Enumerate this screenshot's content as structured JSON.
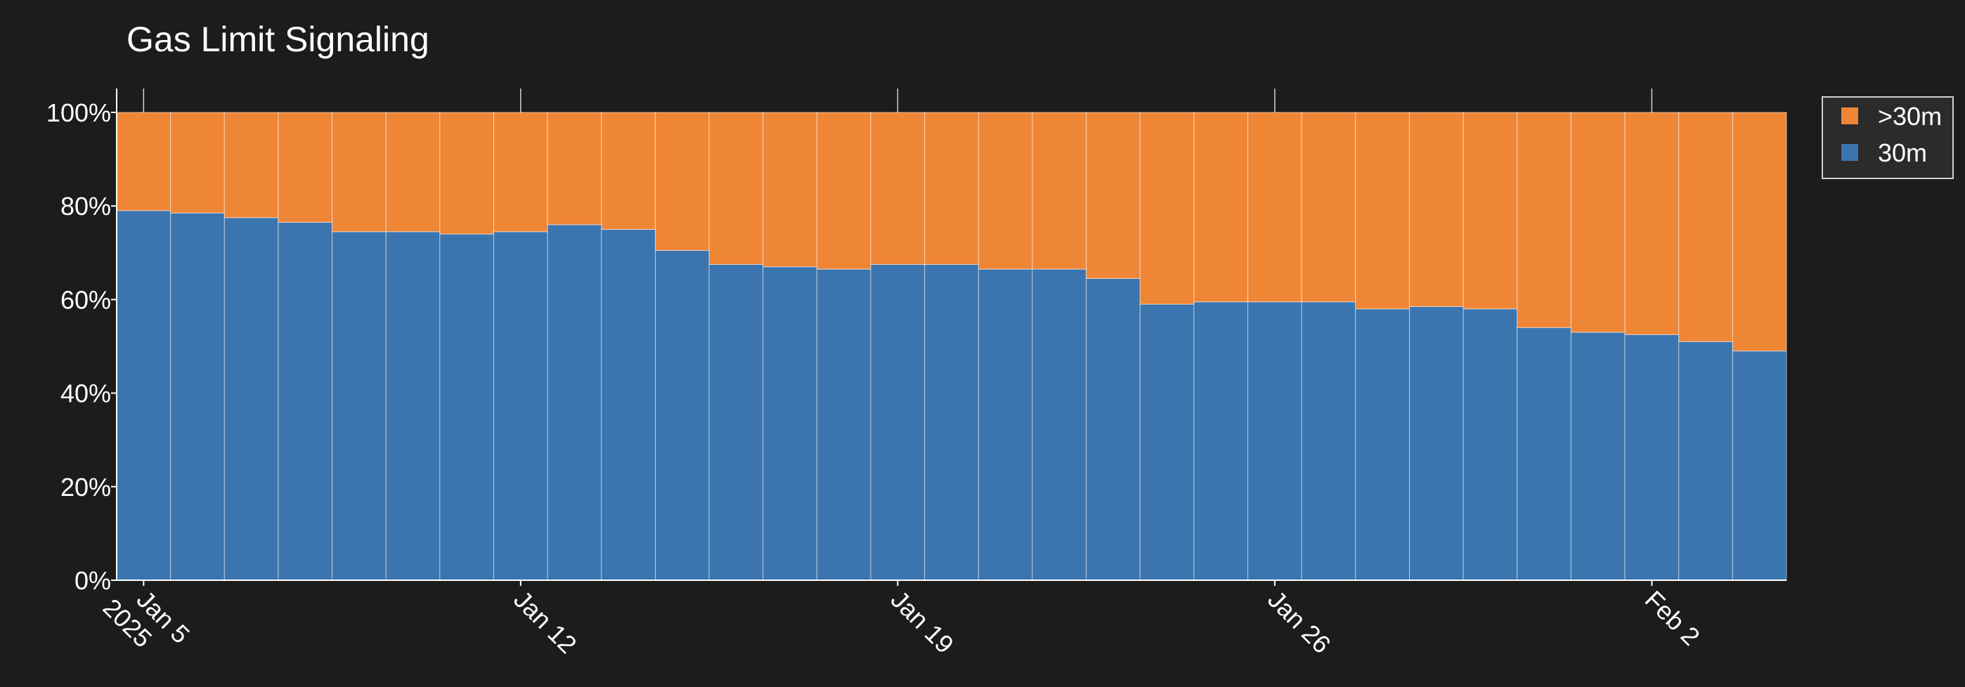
{
  "chart_data": {
    "type": "bar",
    "stacked": true,
    "normalized": true,
    "title": "Gas Limit Signaling",
    "xlabel": "",
    "ylabel": "",
    "ylim": [
      0,
      100
    ],
    "y_ticks": [
      0,
      20,
      40,
      60,
      80,
      100
    ],
    "y_tick_labels": [
      "0%",
      "20%",
      "40%",
      "60%",
      "80%",
      "100%"
    ],
    "categories": [
      "2025-01-05",
      "2025-01-06",
      "2025-01-07",
      "2025-01-08",
      "2025-01-09",
      "2025-01-10",
      "2025-01-11",
      "2025-01-12",
      "2025-01-13",
      "2025-01-14",
      "2025-01-15",
      "2025-01-16",
      "2025-01-17",
      "2025-01-18",
      "2025-01-19",
      "2025-01-20",
      "2025-01-21",
      "2025-01-22",
      "2025-01-23",
      "2025-01-24",
      "2025-01-25",
      "2025-01-26",
      "2025-01-27",
      "2025-01-28",
      "2025-01-29",
      "2025-01-30",
      "2025-01-31",
      "2025-02-01",
      "2025-02-02",
      "2025-02-03",
      "2025-02-04"
    ],
    "x_ticks": [
      {
        "index": 0,
        "lines": [
          "Jan 5",
          "2025"
        ]
      },
      {
        "index": 7,
        "lines": [
          "Jan 12"
        ]
      },
      {
        "index": 14,
        "lines": [
          "Jan 19"
        ]
      },
      {
        "index": 21,
        "lines": [
          "Jan 26"
        ]
      },
      {
        "index": 28,
        "lines": [
          "Feb 2"
        ]
      }
    ],
    "series": [
      {
        "name": "30m",
        "color": "#3b75af",
        "values": [
          79,
          78.5,
          77.5,
          76.5,
          74.5,
          74.5,
          74,
          74.5,
          76,
          75,
          70.5,
          67.5,
          67,
          66.5,
          67.5,
          67.5,
          66.5,
          66.5,
          64.5,
          59,
          59.5,
          59.5,
          59.5,
          58,
          58.5,
          58,
          54,
          53,
          52.5,
          51,
          49
        ]
      },
      {
        "name": ">30m",
        "color": "#ef8636",
        "values": [
          21,
          21.5,
          22.5,
          23.5,
          25.5,
          25.5,
          26,
          25.5,
          24,
          25,
          29.5,
          32.5,
          33,
          33.5,
          32.5,
          32.5,
          33.5,
          33.5,
          35.5,
          41,
          40.5,
          40.5,
          40.5,
          42,
          41.5,
          42,
          46,
          47,
          47.5,
          49,
          51
        ]
      }
    ],
    "legend": {
      "placement": "outside-top-right",
      "order": [
        ">30m",
        "30m"
      ]
    },
    "grid": false
  }
}
